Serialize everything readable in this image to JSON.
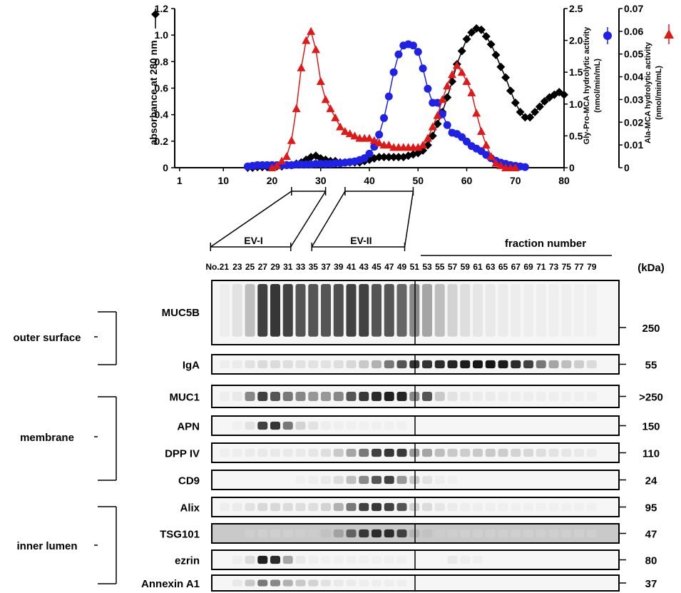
{
  "chart_data": {
    "type": "line",
    "x_label": "fraction number",
    "xlim": [
      0,
      80
    ],
    "x_ticks": [
      1,
      10,
      20,
      30,
      40,
      50,
      60,
      70,
      80
    ],
    "y_left": {
      "label": "absorbance at 280 nm",
      "lim": [
        0,
        1.2
      ],
      "ticks": [
        "0",
        "0.2",
        "0.4",
        "0.6",
        "0.8",
        "1.0",
        "1.2"
      ]
    },
    "y_right1": {
      "label_line1": "Gly-Pro-MCA hydrolytic activity",
      "label_line2": "(nmol/min/mL)",
      "lim": [
        0,
        2.5
      ],
      "ticks": [
        "0",
        "0.5",
        "1.0",
        "1.5",
        "2.0",
        "2.5"
      ]
    },
    "y_right2": {
      "label_line1": "Ala-MCA hydrolytic activity",
      "label_line2": "(nmol/min/mL)",
      "lim": [
        0,
        0.07
      ],
      "ticks": [
        "0",
        "0.01",
        "0.02",
        "0.03",
        "0.04",
        "0.05",
        "0.06",
        "0.07"
      ]
    },
    "series": [
      {
        "name": "absorbance at 280 nm",
        "axis": "left",
        "color": "#000000",
        "marker": "diamond",
        "x": [
          15,
          16,
          17,
          18,
          19,
          20,
          21,
          22,
          23,
          24,
          25,
          26,
          27,
          28,
          29,
          30,
          31,
          32,
          33,
          34,
          35,
          36,
          37,
          38,
          39,
          40,
          41,
          42,
          43,
          44,
          45,
          46,
          47,
          48,
          49,
          50,
          51,
          52,
          53,
          54,
          55,
          56,
          57,
          58,
          59,
          60,
          61,
          62,
          63,
          64,
          65,
          66,
          67,
          68,
          69,
          70,
          71,
          72,
          73,
          74,
          75,
          76,
          77,
          78,
          79,
          80
        ],
        "y": [
          0,
          0,
          0.005,
          0.005,
          0.005,
          0.01,
          0.01,
          0.01,
          0.02,
          0.02,
          0.03,
          0.04,
          0.06,
          0.08,
          0.09,
          0.07,
          0.06,
          0.05,
          0.05,
          0.04,
          0.04,
          0.04,
          0.04,
          0.04,
          0.05,
          0.06,
          0.07,
          0.08,
          0.08,
          0.08,
          0.08,
          0.08,
          0.08,
          0.09,
          0.1,
          0.11,
          0.13,
          0.17,
          0.24,
          0.33,
          0.42,
          0.53,
          0.65,
          0.78,
          0.88,
          0.97,
          1.02,
          1.05,
          1.04,
          0.99,
          0.93,
          0.85,
          0.76,
          0.68,
          0.58,
          0.49,
          0.42,
          0.38,
          0.38,
          0.42,
          0.46,
          0.5,
          0.53,
          0.55,
          0.57,
          0.55
        ]
      },
      {
        "name": "Gly-Pro-MCA hydrolytic activity",
        "axis": "right1",
        "color": "#1f22e6",
        "marker": "circle",
        "x": [
          15,
          16,
          17,
          18,
          19,
          20,
          21,
          22,
          23,
          24,
          25,
          26,
          27,
          28,
          29,
          30,
          31,
          32,
          33,
          34,
          35,
          36,
          37,
          38,
          39,
          40,
          41,
          42,
          43,
          44,
          45,
          46,
          47,
          48,
          49,
          50,
          51,
          52,
          53,
          54,
          55,
          56,
          57,
          58,
          59,
          60,
          61,
          62,
          63,
          64,
          65,
          66,
          67,
          68,
          69,
          70,
          71,
          72
        ],
        "y": [
          0.02,
          0.03,
          0.04,
          0.04,
          0.04,
          0.04,
          0.04,
          0.04,
          0.04,
          0.04,
          0.05,
          0.05,
          0.05,
          0.05,
          0.06,
          0.06,
          0.06,
          0.06,
          0.07,
          0.07,
          0.08,
          0.09,
          0.1,
          0.12,
          0.15,
          0.22,
          0.33,
          0.52,
          0.78,
          1.12,
          1.5,
          1.78,
          1.92,
          1.94,
          1.92,
          1.82,
          1.56,
          1.24,
          1.02,
          1.02,
          0.84,
          0.67,
          0.55,
          0.53,
          0.48,
          0.41,
          0.34,
          0.3,
          0.26,
          0.2,
          0.15,
          0.11,
          0.08,
          0.06,
          0.04,
          0.03,
          0.02,
          0.01
        ]
      },
      {
        "name": "Ala-MCA hydrolytic activity",
        "axis": "right2",
        "color": "#e01818",
        "marker": "triangle",
        "x": [
          20,
          21,
          22,
          23,
          24,
          25,
          26,
          27,
          28,
          29,
          30,
          31,
          32,
          33,
          34,
          35,
          36,
          37,
          38,
          39,
          40,
          41,
          42,
          43,
          44,
          45,
          46,
          47,
          48,
          49,
          50,
          51,
          52,
          53,
          54,
          55,
          56,
          57,
          58,
          59,
          60,
          61,
          62,
          63,
          64,
          65,
          66,
          67,
          68,
          69,
          70
        ],
        "y": [
          0,
          0.001,
          0.003,
          0.005,
          0.012,
          0.026,
          0.044,
          0.056,
          0.06,
          0.052,
          0.038,
          0.03,
          0.026,
          0.022,
          0.018,
          0.016,
          0.015,
          0.014,
          0.013,
          0.013,
          0.013,
          0.012,
          0.011,
          0.01,
          0.01,
          0.009,
          0.009,
          0.009,
          0.009,
          0.009,
          0.009,
          0.01,
          0.013,
          0.018,
          0.023,
          0.03,
          0.036,
          0.041,
          0.045,
          0.042,
          0.038,
          0.033,
          0.024,
          0.016,
          0.01,
          0.005,
          0.002,
          0.001,
          0,
          0,
          0
        ]
      }
    ]
  },
  "ev_groups": [
    {
      "label": "EV-I",
      "from": 21,
      "to": 31
    },
    {
      "label": "EV-II",
      "from": 35,
      "to": 49
    }
  ],
  "blot_header": {
    "fraction_number_label": "fraction number",
    "kda_label": "(kDa)"
  },
  "lane_labels": [
    "No.21",
    "23",
    "25",
    "27",
    "29",
    "31",
    "33",
    "35",
    "37",
    "39",
    "41",
    "43",
    "45",
    "47",
    "49",
    "51",
    "53",
    "55",
    "57",
    "59",
    "61",
    "63",
    "65",
    "67",
    "69",
    "71",
    "73",
    "75",
    "77",
    "79"
  ],
  "blots": [
    {
      "name": "MUC5B",
      "kda": "250",
      "tall": true,
      "intensities": [
        0.05,
        0.15,
        0.35,
        0.75,
        0.8,
        0.75,
        0.7,
        0.7,
        0.7,
        0.72,
        0.75,
        0.75,
        0.7,
        0.7,
        0.65,
        0.55,
        0.45,
        0.35,
        0.25,
        0.18,
        0.12,
        0.1,
        0.08,
        0.06,
        0.05,
        0.04,
        0.03,
        0.03,
        0.02,
        0.02
      ]
    },
    {
      "name": "IgA",
      "kda": "55",
      "intensities": [
        0.05,
        0.08,
        0.15,
        0.2,
        0.2,
        0.18,
        0.15,
        0.15,
        0.15,
        0.18,
        0.22,
        0.3,
        0.4,
        0.6,
        0.7,
        0.8,
        0.82,
        0.85,
        0.88,
        0.92,
        0.95,
        0.95,
        0.92,
        0.85,
        0.75,
        0.6,
        0.45,
        0.35,
        0.28,
        0.2
      ]
    },
    {
      "name": "MUC1",
      "kda": ">250",
      "intensities": [
        0.05,
        0.1,
        0.55,
        0.75,
        0.7,
        0.6,
        0.55,
        0.5,
        0.5,
        0.55,
        0.7,
        0.8,
        0.85,
        0.9,
        0.88,
        0.55,
        0.7,
        0.3,
        0.15,
        0.1,
        0.08,
        0.08,
        0.06,
        0.05,
        0.05,
        0.04,
        0.04,
        0.03,
        0.03,
        0.03
      ]
    },
    {
      "name": "APN",
      "kda": "150",
      "intensities": [
        0,
        0.02,
        0.15,
        0.75,
        0.8,
        0.6,
        0.25,
        0.15,
        0.05,
        0.03,
        0.02,
        0.02,
        0.02,
        0.02,
        0.02,
        0,
        0,
        0,
        0,
        0,
        0,
        0,
        0,
        0,
        0,
        0,
        0,
        0,
        0,
        0
      ]
    },
    {
      "name": "DPP IV",
      "kda": "110",
      "intensities": [
        0.03,
        0.05,
        0.08,
        0.1,
        0.1,
        0.1,
        0.1,
        0.12,
        0.18,
        0.3,
        0.45,
        0.6,
        0.75,
        0.8,
        0.78,
        0.5,
        0.45,
        0.35,
        0.3,
        0.28,
        0.3,
        0.3,
        0.28,
        0.25,
        0.22,
        0.18,
        0.15,
        0.12,
        0.1,
        0.08
      ]
    },
    {
      "name": "CD9",
      "kda": "24",
      "intensities": [
        0,
        0,
        0,
        0,
        0,
        0,
        0.02,
        0.05,
        0.1,
        0.2,
        0.35,
        0.55,
        0.7,
        0.75,
        0.5,
        0.3,
        0.15,
        0.05,
        0.02,
        0,
        0,
        0,
        0,
        0,
        0,
        0,
        0,
        0,
        0,
        0
      ]
    },
    {
      "name": "Alix",
      "kda": "95",
      "intensities": [
        0.05,
        0.08,
        0.15,
        0.22,
        0.22,
        0.2,
        0.18,
        0.18,
        0.25,
        0.4,
        0.6,
        0.75,
        0.8,
        0.75,
        0.7,
        0.25,
        0.2,
        0.12,
        0.08,
        0.05,
        0.04,
        0.03,
        0.03,
        0.02,
        0.02,
        0.02,
        0.02,
        0.02,
        0.02,
        0.02
      ]
    },
    {
      "name": "TSG101",
      "kda": "47",
      "gray_bg": true,
      "intensities": [
        0,
        0,
        0.05,
        0.03,
        0.03,
        0.03,
        0.05,
        0.1,
        0.2,
        0.4,
        0.65,
        0.8,
        0.85,
        0.85,
        0.75,
        0.3,
        0.2,
        0.1,
        0.05,
        0.03,
        0.02,
        0.02,
        0.02,
        0.02,
        0.02,
        0.02,
        0.02,
        0.02,
        0.02,
        0.02
      ]
    },
    {
      "name": "ezrin",
      "kda": "80",
      "intensities": [
        0,
        0.05,
        0.2,
        0.9,
        0.85,
        0.45,
        0.1,
        0.03,
        0.02,
        0.02,
        0.02,
        0.02,
        0.02,
        0.02,
        0.02,
        0,
        0,
        0,
        0.1,
        0.05,
        0.03,
        0,
        0,
        0,
        0,
        0,
        0,
        0,
        0,
        0
      ]
    },
    {
      "name": "Annexin A1",
      "kda": "37",
      "intensities": [
        0,
        0.1,
        0.3,
        0.6,
        0.55,
        0.4,
        0.3,
        0.25,
        0.15,
        0.1,
        0.08,
        0.05,
        0.05,
        0.05,
        0.05,
        0,
        0,
        0,
        0,
        0,
        0,
        0,
        0,
        0,
        0,
        0,
        0,
        0,
        0,
        0
      ]
    }
  ],
  "groups": [
    {
      "label": "outer surface"
    },
    {
      "label": "membrane"
    },
    {
      "label": "inner lumen"
    }
  ]
}
